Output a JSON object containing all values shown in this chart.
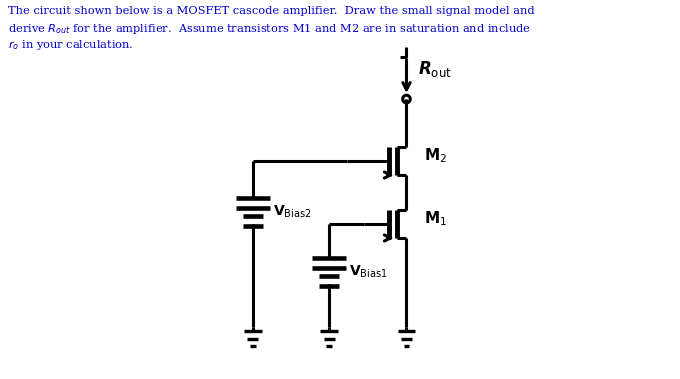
{
  "bg_color": "#ffffff",
  "line_color": "#000000",
  "text_color": "#0000cc",
  "lw": 2.2,
  "M2_label": "M$_2$",
  "M1_label": "M$_1$",
  "VBias2_label": "V$_{\\mathrm{Bias2}}$",
  "VBias1_label": "V$_{\\mathrm{Bias1}}$",
  "Rout_label": "R$_{\\mathrm{out}}$",
  "header_line1": "The circuit shown below is a MOSFET cascode amplifier.  Draw the small signal model and",
  "header_line2": "derive $R_{out}$ for the amplifier.  Assume transistors M1 and M2 are in saturation and include",
  "header_line3": "$r_o$ in your calculation.",
  "xlim": [
    0,
    6.8
  ],
  "ylim": [
    0,
    3.79
  ]
}
